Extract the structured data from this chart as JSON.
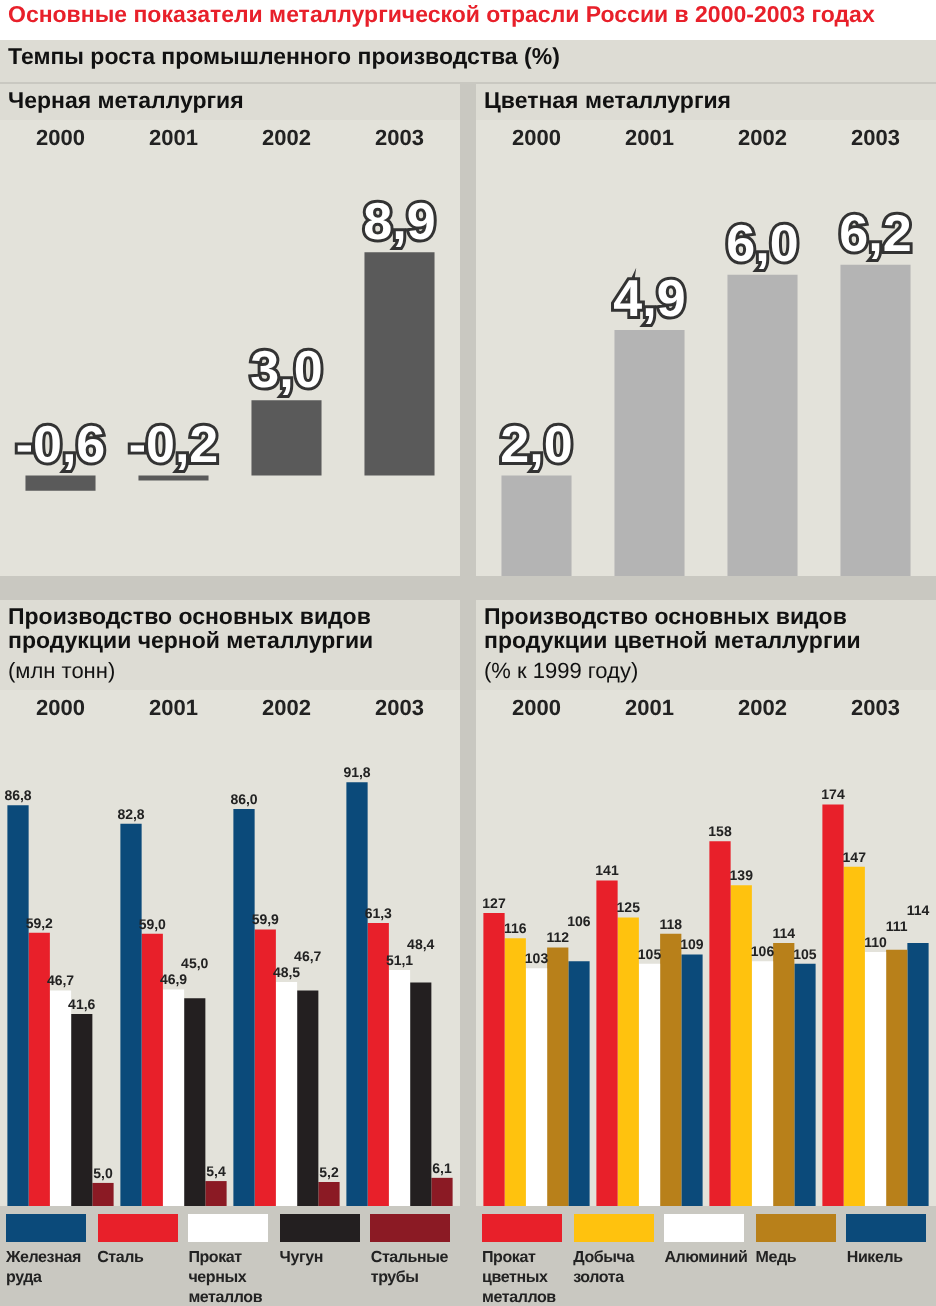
{
  "chart_data": [
    {
      "type": "bar",
      "title": "Черная металлургия",
      "annotations": [
        "Основные показатели металлургической отрасли России в 2000-2003 годах",
        "Темпы роста промышленного производства (%)"
      ],
      "categories": [
        "2000",
        "2001",
        "2002",
        "2003"
      ],
      "values": [
        -0.6,
        -0.2,
        3.0,
        8.9
      ],
      "value_labels": [
        "-0,6",
        "-0,2",
        "3,0",
        "8,9"
      ],
      "color": "#5a5a5a",
      "tick_labels": "x",
      "grid": false,
      "legend": false
    },
    {
      "type": "bar",
      "title": "Цветная металлургия",
      "categories": [
        "2000",
        "2001",
        "2002",
        "2003"
      ],
      "values": [
        2.0,
        4.9,
        6.0,
        6.2
      ],
      "value_labels": [
        "2,0",
        "4,9",
        "6,0",
        "6,2"
      ],
      "color": "#b4b4b4",
      "tick_labels": "x",
      "grid": false,
      "legend": false
    },
    {
      "type": "bar",
      "title": "Производство основных видов продукции черной металлургии",
      "subtitle": "(млн тонн)",
      "categories": [
        "2000",
        "2001",
        "2002",
        "2003"
      ],
      "tick_labels": "x",
      "grid": false,
      "legend": "bottom",
      "series": [
        {
          "name": "Железная руда",
          "color": "#0b4a7a",
          "values": [
            86.8,
            82.8,
            86.0,
            91.8
          ],
          "value_labels": [
            "86,8",
            "82,8",
            "86,0",
            "91,8"
          ]
        },
        {
          "name": "Сталь",
          "color": "#e8202a",
          "values": [
            59.2,
            59.0,
            59.9,
            61.3
          ],
          "value_labels": [
            "59,2",
            "59,0",
            "59,9",
            "61,3"
          ]
        },
        {
          "name": "Прокат черных металлов",
          "color": "#ffffff",
          "values": [
            46.7,
            46.9,
            48.5,
            51.1
          ],
          "value_labels": [
            "46,7",
            "46,9",
            "48,5",
            "51,1"
          ]
        },
        {
          "name": "Чугун",
          "color": "#231f20",
          "values": [
            41.6,
            45.0,
            46.7,
            48.4
          ],
          "value_labels": [
            "41,6",
            "45,0",
            "46,7",
            "48,4"
          ]
        },
        {
          "name": "Стальные трубы",
          "color": "#8b1a24",
          "values": [
            5.0,
            5.4,
            5.2,
            6.1
          ],
          "value_labels": [
            "5,0",
            "5,4",
            "5,2",
            "6,1"
          ]
        }
      ]
    },
    {
      "type": "bar",
      "title": "Производство основных видов продукции цветной металлургии",
      "subtitle": "(% к 1999 году)",
      "categories": [
        "2000",
        "2001",
        "2002",
        "2003"
      ],
      "tick_labels": "x",
      "grid": false,
      "legend": "bottom",
      "data_labels": true,
      "series": [
        {
          "name": "Прокат цветных металлов",
          "color": "#e8202a",
          "values": [
            127,
            141,
            158,
            174
          ]
        },
        {
          "name": "Добыча золота",
          "color": "#ffc20e",
          "values": [
            116,
            125,
            139,
            147
          ]
        },
        {
          "name": "Алюминий",
          "color": "#ffffff",
          "values": [
            103,
            105,
            106,
            110
          ]
        },
        {
          "name": "Медь",
          "color": "#b8801a",
          "values": [
            112,
            118,
            114,
            111
          ]
        },
        {
          "name": "Никель",
          "color": "#0b4a7a",
          "values": [
            106,
            109,
            105,
            114
          ]
        }
      ]
    }
  ]
}
